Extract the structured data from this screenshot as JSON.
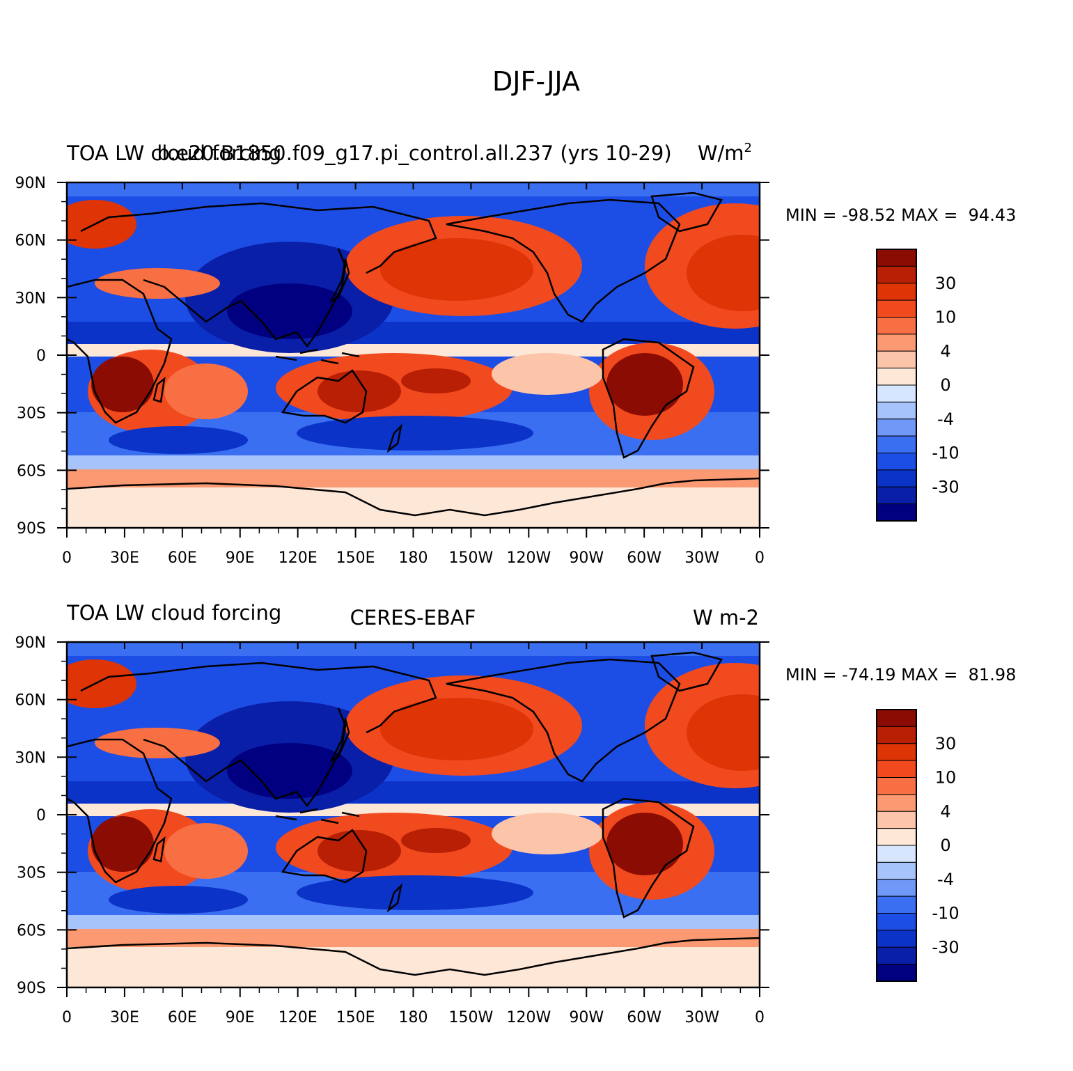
{
  "figure_title": "DJF-JJA",
  "colors": {
    "levels": [
      "#000080",
      "#0a1fa8",
      "#0b33c8",
      "#1c4ee6",
      "#3b6ff2",
      "#6f98f7",
      "#a7c3fb",
      "#d5e6fe",
      "#fde7d7",
      "#fcc5aa",
      "#fb9a72",
      "#f96f44",
      "#f24a1f",
      "#de3406",
      "#b81f04",
      "#8a0c02"
    ],
    "coast": "#000000"
  },
  "colorbar": {
    "tick_labels": [
      "30",
      "10",
      "4",
      "0",
      "-4",
      "-10",
      "-30"
    ]
  },
  "panels": [
    {
      "left_title": "TOA LW cloud forcing",
      "center_title": "b.e20.B1850.f09_g17.pi_control.all.237 (yrs 10-29)",
      "right_title": "W/m",
      "right_title_sup": "2",
      "stats": "MIN = -98.52 MAX =  94.43",
      "y_ticks": [
        "90N",
        "60N",
        "30N",
        "0",
        "30S",
        "60S",
        "90S"
      ],
      "x_ticks": [
        "0",
        "30E",
        "60E",
        "90E",
        "120E",
        "150E",
        "180",
        "150W",
        "120W",
        "90W",
        "60W",
        "30W",
        "0"
      ]
    },
    {
      "left_title": "TOA LW cloud forcing",
      "center_title": "CERES-EBAF",
      "right_title": "W m-2",
      "right_title_sup": "",
      "stats": "MIN = -74.19 MAX =  81.98",
      "y_ticks": [
        "90N",
        "60N",
        "30N",
        "0",
        "30S",
        "60S",
        "90S"
      ],
      "x_ticks": [
        "0",
        "30E",
        "60E",
        "90E",
        "120E",
        "150E",
        "180",
        "150W",
        "120W",
        "90W",
        "60W",
        "30W",
        "0"
      ]
    }
  ]
}
